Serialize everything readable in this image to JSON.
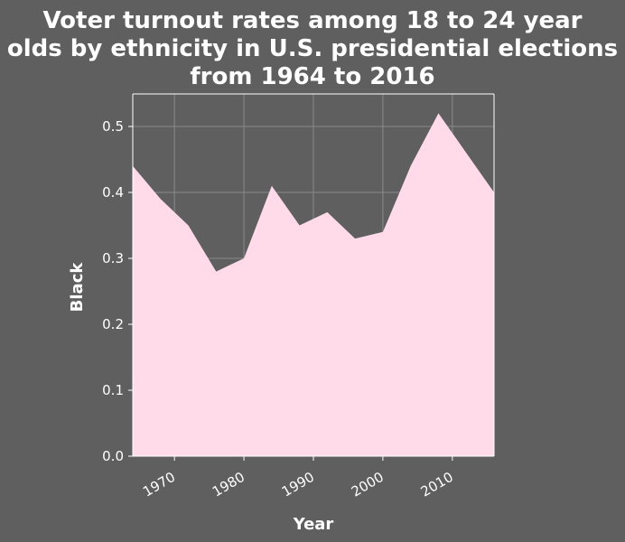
{
  "chart_data": {
    "type": "area",
    "title_lines": [
      "Voter turnout rates among 18 to 24 year",
      "olds by ethnicity in U.S. presidential elections",
      "from 1964 to 2016"
    ],
    "xlabel": "Year",
    "ylabel": "Black",
    "xlim": [
      1964,
      2016
    ],
    "ylim": [
      0,
      0.55
    ],
    "xticks": [
      1970,
      1980,
      1990,
      2000,
      2010
    ],
    "yticks": [
      "0.0",
      "0.1",
      "0.2",
      "0.3",
      "0.4",
      "0.5"
    ],
    "grid": true,
    "series": [
      {
        "x": [
          1964,
          1968,
          1972,
          1976,
          1980,
          1984,
          1988,
          1992,
          1996,
          2000,
          2004,
          2008,
          2012,
          2016
        ],
        "values": [
          0.44,
          0.39,
          0.35,
          0.28,
          0.3,
          0.41,
          0.35,
          0.37,
          0.33,
          0.34,
          0.44,
          0.52,
          0.46,
          0.4
        ]
      }
    ]
  },
  "colors": {
    "background": "#5f5f5f",
    "area_fill": "#ffdbea",
    "grid": "#8a8a8a",
    "text": "#ffffff"
  }
}
